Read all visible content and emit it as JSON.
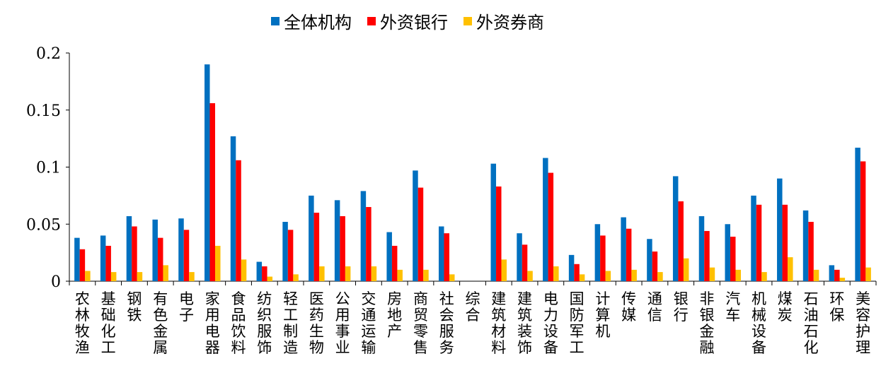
{
  "chart_data": {
    "type": "bar",
    "title": "",
    "xlabel": "",
    "ylabel": "",
    "ylim": [
      0,
      0.2
    ],
    "yticks": [
      "0",
      "0.05",
      "0.1",
      "0.15",
      "0.2"
    ],
    "yticks_values": [
      0,
      0.05,
      0.1,
      0.15,
      0.2
    ],
    "grid": false,
    "legend_position": "top-center",
    "categories": [
      "农林牧渔",
      "基础化工",
      "钢铁",
      "有色金属",
      "电子",
      "家用电器",
      "食品饮料",
      "纺织服饰",
      "轻工制造",
      "医药生物",
      "公用事业",
      "交通运输",
      "房地产",
      "商贸零售",
      "社会服务",
      "综合",
      "建筑材料",
      "建筑装饰",
      "电力设备",
      "国防军工",
      "计算机",
      "传媒",
      "通信",
      "银行",
      "非银金融",
      "汽车",
      "机械设备",
      "煤炭",
      "石油石化",
      "环保",
      "美容护理"
    ],
    "series": [
      {
        "name": "全体机构",
        "color": "#0070C0",
        "values": [
          0.038,
          0.04,
          0.057,
          0.054,
          0.055,
          0.19,
          0.127,
          0.017,
          0.052,
          0.075,
          0.071,
          0.079,
          0.043,
          0.097,
          0.048,
          0.0,
          0.103,
          0.042,
          0.108,
          0.023,
          0.05,
          0.056,
          0.037,
          0.092,
          0.057,
          0.05,
          0.075,
          0.09,
          0.062,
          0.014,
          0.117
        ]
      },
      {
        "name": "外资银行",
        "color": "#FF0000",
        "values": [
          0.028,
          0.031,
          0.048,
          0.038,
          0.045,
          0.156,
          0.106,
          0.013,
          0.045,
          0.06,
          0.057,
          0.065,
          0.031,
          0.082,
          0.042,
          0.0,
          0.083,
          0.032,
          0.095,
          0.015,
          0.04,
          0.046,
          0.026,
          0.07,
          0.044,
          0.039,
          0.067,
          0.067,
          0.052,
          0.01,
          0.105
        ]
      },
      {
        "name": "外资券商",
        "color": "#FFC000",
        "values": [
          0.009,
          0.008,
          0.008,
          0.014,
          0.008,
          0.031,
          0.019,
          0.004,
          0.006,
          0.013,
          0.013,
          0.013,
          0.01,
          0.01,
          0.006,
          0.0,
          0.019,
          0.009,
          0.013,
          0.006,
          0.009,
          0.01,
          0.008,
          0.02,
          0.012,
          0.01,
          0.008,
          0.021,
          0.01,
          0.003,
          0.012
        ]
      }
    ]
  }
}
